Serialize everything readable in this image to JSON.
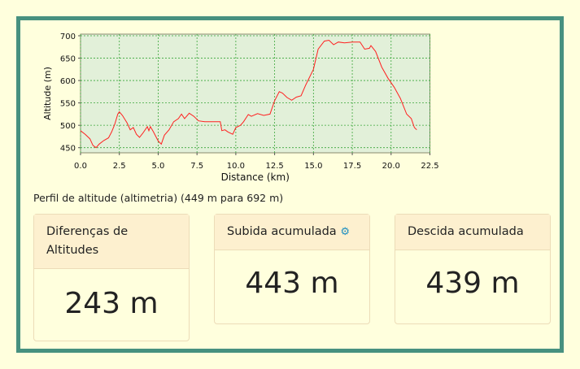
{
  "chart_data": {
    "type": "line",
    "xlabel": "Distance (km)",
    "ylabel": "Altitude (m)",
    "xlim": [
      0,
      22.5
    ],
    "ylim": [
      440,
      705
    ],
    "xticks": [
      "0.0",
      "2.5",
      "5.0",
      "7.5",
      "10.0",
      "12.5",
      "15.0",
      "17.5",
      "20.0",
      "22.5"
    ],
    "yticks": [
      "450",
      "500",
      "550",
      "600",
      "650",
      "700"
    ],
    "grid": true,
    "colors": {
      "line": "#ff2020",
      "plot_bg": "#e2f0d9",
      "grid": "#3aa63a"
    },
    "x": [
      0,
      0.3,
      0.6,
      0.8,
      1.0,
      1.2,
      1.5,
      1.8,
      2.0,
      2.2,
      2.4,
      2.5,
      2.7,
      3.0,
      3.2,
      3.4,
      3.6,
      3.8,
      4.0,
      4.3,
      4.4,
      4.5,
      4.7,
      5.0,
      5.2,
      5.4,
      5.7,
      6.0,
      6.3,
      6.5,
      6.7,
      7.0,
      7.3,
      7.6,
      8.0,
      9.0,
      9.1,
      9.3,
      9.5,
      9.8,
      10.0,
      10.3,
      10.5,
      10.8,
      11.0,
      11.4,
      11.8,
      12.2,
      12.5,
      12.8,
      13.0,
      13.3,
      13.6,
      13.9,
      14.2,
      14.5,
      15.0,
      15.3,
      15.7,
      16.0,
      16.3,
      16.6,
      17.0,
      17.5,
      18.0,
      18.3,
      18.6,
      18.7,
      19.0,
      19.4,
      19.8,
      20.2,
      20.6,
      21.0,
      21.3,
      21.5,
      21.65
    ],
    "y": [
      488,
      480,
      470,
      455,
      450,
      458,
      466,
      472,
      485,
      502,
      525,
      530,
      522,
      505,
      490,
      495,
      480,
      473,
      482,
      497,
      488,
      497,
      485,
      465,
      458,
      478,
      490,
      508,
      515,
      525,
      515,
      527,
      520,
      510,
      508,
      508,
      488,
      490,
      485,
      480,
      495,
      500,
      508,
      524,
      520,
      526,
      522,
      525,
      555,
      575,
      572,
      562,
      556,
      563,
      566,
      590,
      625,
      670,
      688,
      690,
      680,
      686,
      684,
      686,
      686,
      670,
      672,
      678,
      665,
      630,
      605,
      585,
      560,
      525,
      515,
      495,
      490
    ]
  },
  "caption": "Perfil de altitude (altimetria) (449 m para 692 m)",
  "cards": [
    {
      "title": "Diferenças de Altitudes",
      "value": "243 m"
    },
    {
      "title": "Subida acumulada",
      "value": "443 m",
      "icon": "gears-icon"
    },
    {
      "title": "Descida acumulada",
      "value": "439 m"
    }
  ]
}
